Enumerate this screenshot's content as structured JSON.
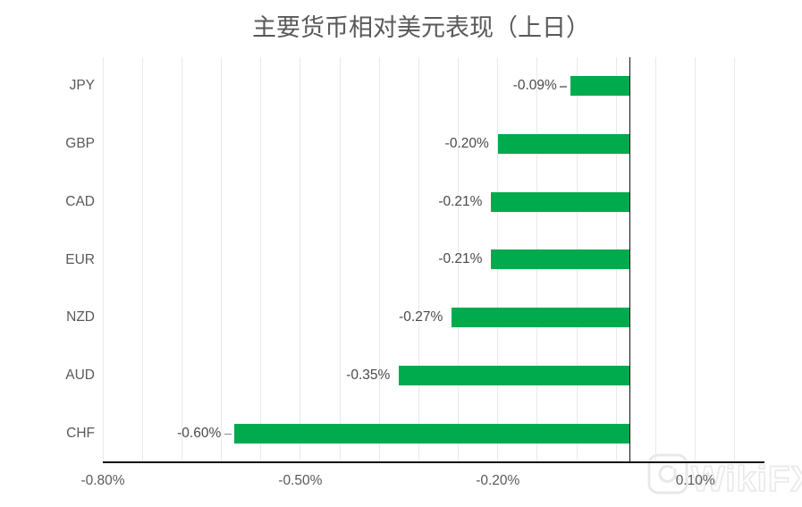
{
  "chart_data": {
    "type": "bar",
    "orientation": "horizontal",
    "title": "主要货币相对美元表现（上日）",
    "xlabel": "",
    "ylabel": "",
    "unit": "%",
    "categories": [
      "JPY",
      "GBP",
      "CAD",
      "EUR",
      "NZD",
      "AUD",
      "CHF"
    ],
    "values": [
      -0.09,
      -0.2,
      -0.21,
      -0.21,
      -0.27,
      -0.35,
      -0.6
    ],
    "value_labels": [
      "-0.09%",
      "-0.20%",
      "-0.21%",
      "-0.21%",
      "-0.27%",
      "-0.35%",
      "-0.60%"
    ],
    "leader_lines": [
      true,
      false,
      false,
      false,
      false,
      false,
      true
    ],
    "xlim": [
      -0.8,
      0.205
    ],
    "x_ticks": [
      {
        "value": -0.8,
        "label": "-0.80%"
      },
      {
        "value": -0.5,
        "label": "-0.50%"
      },
      {
        "value": -0.2,
        "label": "-0.20%"
      },
      {
        "value": 0.1,
        "label": "0.10%"
      }
    ],
    "minor_grid_step": 0.06,
    "grid": true,
    "legend": "none",
    "zero_line": true,
    "bar_color": "#00AB4E"
  },
  "watermark": {
    "text": "WikiFX"
  },
  "colors": {
    "bar": "#00AB4E",
    "grid": "#E9E9E9",
    "axis": "#121212",
    "tick_label": "#595959",
    "category_label": "#595959",
    "data_label": "#4A4A4A",
    "leader": "#8C8C8C",
    "title": "#595959",
    "watermark": "#E8E8E8",
    "background": "#FFFFFF"
  }
}
